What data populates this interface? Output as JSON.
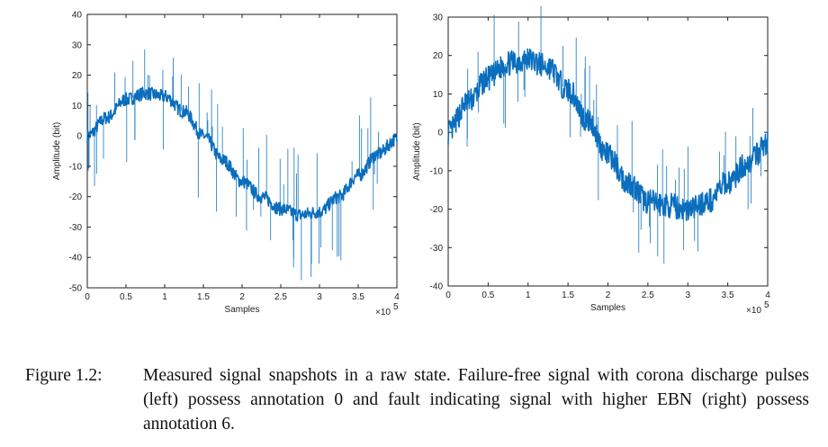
{
  "chart_data": [
    {
      "type": "line",
      "xlabel": "Samples",
      "ylabel": "Amplitude (bit)",
      "x_multiplier": "×10",
      "x_multiplier_exp": "5",
      "xlim": [
        0,
        4
      ],
      "ylim": [
        -50,
        40
      ],
      "xticks": [
        "0",
        "0.5",
        "1",
        "1.5",
        "2",
        "2.5",
        "3",
        "3.5",
        "4"
      ],
      "yticks": [
        "40",
        "30",
        "20",
        "10",
        "0",
        "-10",
        "-20",
        "-30",
        "-40",
        "-50"
      ],
      "series": [
        {
          "color": "#0a6ebd",
          "x": [
            0,
            0.25,
            0.5,
            0.75,
            1.0,
            1.25,
            1.5,
            1.75,
            2.0,
            2.25,
            2.5,
            2.75,
            3.0,
            3.25,
            3.5,
            3.75,
            4.0
          ],
          "y": [
            0,
            6,
            12,
            14,
            13,
            8,
            0,
            -8,
            -15,
            -20,
            -24,
            -26,
            -25,
            -20,
            -13,
            -6,
            -1
          ]
        }
      ]
    },
    {
      "type": "line",
      "xlabel": "Samples",
      "ylabel": "Amplitude (bit)",
      "x_multiplier": "×10",
      "x_multiplier_exp": "5",
      "xlim": [
        0,
        4
      ],
      "ylim": [
        -40,
        30
      ],
      "xticks": [
        "0",
        "0.5",
        "1",
        "1.5",
        "2",
        "2.5",
        "3",
        "3.5",
        "4"
      ],
      "yticks": [
        "30",
        "20",
        "10",
        "0",
        "-10",
        "-20",
        "-30",
        "-40"
      ],
      "series": [
        {
          "color": "#0a6ebd",
          "x": [
            0,
            0.25,
            0.5,
            0.75,
            1.0,
            1.25,
            1.5,
            1.75,
            2.0,
            2.25,
            2.5,
            2.75,
            3.0,
            3.25,
            3.5,
            3.75,
            4.0
          ],
          "y": [
            0,
            8,
            14,
            18,
            19,
            17,
            11,
            3,
            -6,
            -13,
            -18,
            -19,
            -20,
            -18,
            -13,
            -8,
            -3
          ]
        }
      ]
    }
  ],
  "caption": {
    "label": "Figure 1.2:",
    "text": "Measured signal snapshots in a raw state.  Failure-free signal with corona discharge pulses (left) possess annotation 0 and fault indicating signal with higher EBN (right) possess annotation 6."
  }
}
